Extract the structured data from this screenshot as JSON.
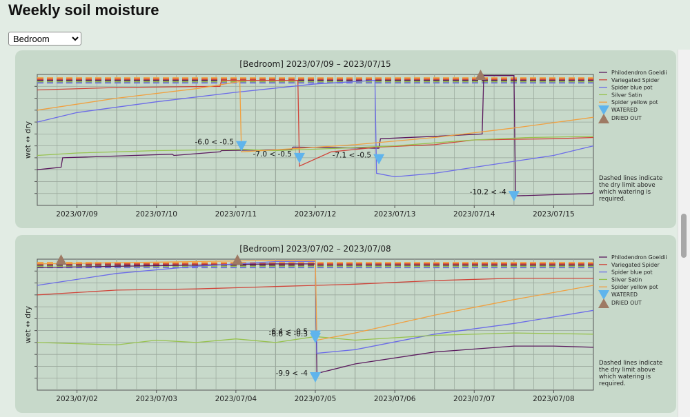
{
  "page": {
    "title": "Weekly soil moisture"
  },
  "room_select": {
    "value": "Bedroom",
    "options": [
      "Bedroom"
    ]
  },
  "chart_data": [
    {
      "type": "line",
      "title": "[Bedroom]    2023/07/09 – 2023/07/15",
      "ylabel": "wet ↔ dry",
      "xlabel": "",
      "x_ticks": [
        "2023/07/09",
        "2023/07/10",
        "2023/07/11",
        "2023/07/12",
        "2023/07/13",
        "2023/07/14",
        "2023/07/15"
      ],
      "x_range": [
        2023.0709,
        2023.0716
      ],
      "y_range": [
        -11,
        0
      ],
      "grid": true,
      "legend_placement": "right",
      "note": "Dashed lines indicate the dry limit above which watering is required.",
      "series": [
        {
          "name": "Philodendron Goeldii",
          "color": "#5b1a5e",
          "dry_limit": -0.5,
          "x": [
            0,
            0.3,
            0.32,
            1.7,
            1.72,
            2.3,
            2.32,
            3.2,
            3.22,
            4.3,
            4.32,
            5.0,
            5.6,
            5.62,
            6.0,
            6.02,
            6.98,
            7.0
          ],
          "y": [
            -8.0,
            -7.8,
            -7.0,
            -6.7,
            -6.8,
            -6.5,
            -6.4,
            -6.3,
            -6.1,
            -6.2,
            -5.4,
            -5.2,
            -5.0,
            -0.1,
            -0.1,
            -10.2,
            -10.0,
            -9.9
          ]
        },
        {
          "name": "Variegated Spider",
          "color": "#d0453a",
          "dry_limit": -0.4,
          "x": [
            0,
            1.0,
            2.3,
            2.32,
            3.28,
            3.3,
            3.7,
            4.3,
            5.0,
            5.5,
            6.5,
            7.0
          ],
          "y": [
            -1.3,
            -1.1,
            -1.0,
            -0.5,
            -0.5,
            -7.7,
            -6.5,
            -6.1,
            -5.9,
            -5.5,
            -5.4,
            -5.3
          ]
        },
        {
          "name": "Spider blue pot",
          "color": "#6b6be8",
          "dry_limit": -0.7,
          "x": [
            0,
            0.5,
            1.5,
            2.5,
            3.5,
            4.25,
            4.27,
            4.5,
            5.0,
            5.6,
            6.5,
            7.0
          ],
          "y": [
            -4.0,
            -3.2,
            -2.3,
            -1.5,
            -0.8,
            -0.5,
            -8.3,
            -8.6,
            -8.3,
            -7.7,
            -6.8,
            -6.0
          ]
        },
        {
          "name": "Silver Satin",
          "color": "#97c24e",
          "dry_limit": -0.6,
          "x": [
            0,
            0.5,
            1.5,
            2.6,
            3.0,
            3.8,
            4.5,
            5.5,
            6.2,
            7.0
          ],
          "y": [
            -6.8,
            -6.6,
            -6.4,
            -6.3,
            -6.4,
            -6.2,
            -6.0,
            -5.5,
            -5.3,
            -5.2
          ]
        },
        {
          "name": "Spider yellow pot",
          "color": "#f0a040",
          "dry_limit": -0.3,
          "x": [
            0,
            1.0,
            2.0,
            2.55,
            2.57,
            3.3,
            4.0,
            5.0,
            6.0,
            7.0
          ],
          "y": [
            -3.0,
            -2.0,
            -1.2,
            -0.6,
            -6.5,
            -6.2,
            -5.9,
            -5.3,
            -4.5,
            -3.6
          ]
        }
      ],
      "watered": [
        {
          "x": 2.57,
          "y": -6.0,
          "label": "-6.0 < -0.5"
        },
        {
          "x": 3.3,
          "y": -7.0,
          "label": "-7.0 < -0.5"
        },
        {
          "x": 4.3,
          "y": -7.1,
          "label": "-7.1 < -0.5"
        },
        {
          "x": 6.0,
          "y": -10.2,
          "label": "-10.2 < -4"
        }
      ],
      "dried_out": [
        {
          "x": 5.58,
          "y": 0
        }
      ]
    },
    {
      "type": "line",
      "title": "[Bedroom]    2023/07/02 – 2023/07/08",
      "ylabel": "wet ↔ dry",
      "xlabel": "",
      "x_ticks": [
        "2023/07/02",
        "2023/07/03",
        "2023/07/04",
        "2023/07/05",
        "2023/07/06",
        "2023/07/07",
        "2023/07/08"
      ],
      "x_range": [
        2023.0702,
        2023.0709
      ],
      "y_range": [
        -11,
        0
      ],
      "grid": true,
      "legend_placement": "right",
      "note": "Dashed lines indicate the dry limit above which watering is required.",
      "series": [
        {
          "name": "Philodendron Goeldii",
          "color": "#5b1a5e",
          "dry_limit": -0.5,
          "x": [
            0,
            1.0,
            2.0,
            3.0,
            3.5,
            3.52,
            4.0,
            5.0,
            6.0,
            6.5,
            7.0
          ],
          "y": [
            -0.7,
            -0.6,
            -0.5,
            -0.4,
            -0.4,
            -9.6,
            -8.8,
            -7.8,
            -7.3,
            -7.3,
            -7.4
          ]
        },
        {
          "name": "Variegated Spider",
          "color": "#d0453a",
          "dry_limit": -0.4,
          "x": [
            0,
            1.0,
            2.0,
            3.0,
            4.0,
            5.0,
            6.0,
            7.0
          ],
          "y": [
            -3.0,
            -2.6,
            -2.5,
            -2.3,
            -2.1,
            -1.8,
            -1.6,
            -1.6
          ]
        },
        {
          "name": "Spider blue pot",
          "color": "#6b6be8",
          "dry_limit": -0.7,
          "x": [
            0,
            1.0,
            2.0,
            3.0,
            3.5,
            3.52,
            4.0,
            5.0,
            6.0,
            7.0
          ],
          "y": [
            -2.2,
            -1.2,
            -0.6,
            -0.2,
            -0.2,
            -7.9,
            -7.6,
            -6.3,
            -5.4,
            -4.3
          ]
        },
        {
          "name": "Silver Satin",
          "color": "#97c24e",
          "dry_limit": -0.6,
          "x": [
            0,
            0.5,
            1.0,
            1.5,
            2.0,
            2.5,
            3.0,
            3.5,
            4.0,
            5.0,
            6.0,
            7.0
          ],
          "y": [
            -7.0,
            -7.1,
            -7.2,
            -6.8,
            -7.0,
            -6.7,
            -7.0,
            -6.5,
            -6.8,
            -6.4,
            -6.2,
            -6.3
          ]
        },
        {
          "name": "Spider yellow pot",
          "color": "#f0a040",
          "dry_limit": -0.3,
          "x": [
            0,
            1.0,
            2.0,
            3.0,
            3.5,
            3.52,
            4.0,
            5.0,
            6.0,
            7.0
          ],
          "y": [
            -0.4,
            -0.3,
            -0.2,
            -0.1,
            -0.1,
            -6.8,
            -6.2,
            -4.7,
            -3.4,
            -2.2
          ]
        }
      ],
      "watered": [
        {
          "x": 3.5,
          "y": -6.4,
          "label": "-6.4 < -0.5"
        },
        {
          "x": 3.5,
          "y": -6.6,
          "label": "-6.6 < -0.3"
        },
        {
          "x": 3.5,
          "y": -9.9,
          "label": "-9.9 < -4"
        }
      ],
      "dried_out": [
        {
          "x": 0.3,
          "y": 0
        },
        {
          "x": 2.52,
          "y": 0
        }
      ]
    }
  ],
  "legend_marker_labels": {
    "watered": "WATERED",
    "dried_out": "DRIED OUT"
  },
  "colors": {
    "card_bg": "#c7d9ca",
    "watered": "#5fb4ec",
    "dried_out": "#9e7a64",
    "grid": "#9aa89c"
  }
}
